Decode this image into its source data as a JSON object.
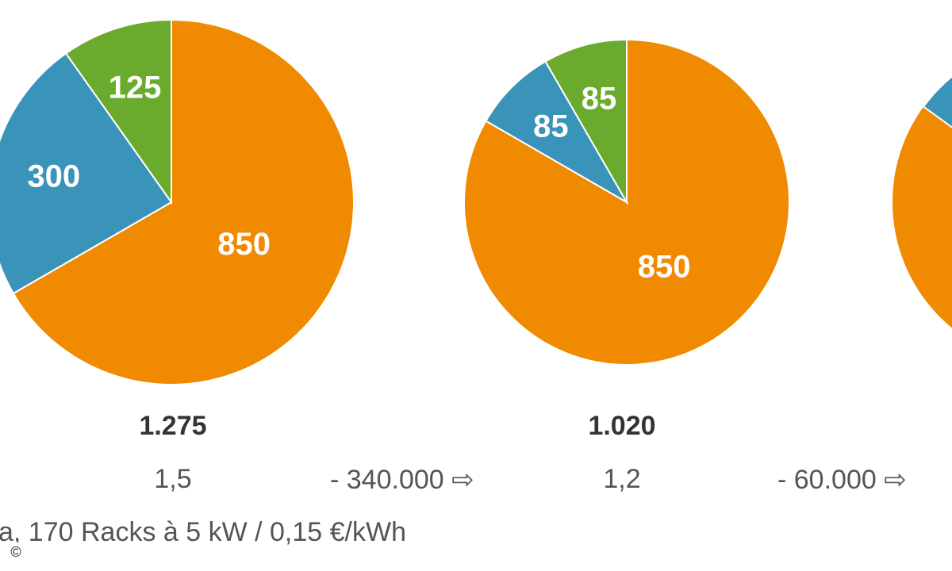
{
  "colors": {
    "orange": "#f08a00",
    "blue": "#3a93b8",
    "green": "#6aaa2c",
    "label": "#ffffff",
    "text": "#555555"
  },
  "chart_data": [
    {
      "type": "pie",
      "slices": [
        {
          "label": "850",
          "value": 850,
          "color": "#f08a00"
        },
        {
          "label": "300",
          "value": 300,
          "color": "#3a93b8"
        },
        {
          "label": "125",
          "value": 125,
          "color": "#6aaa2c"
        }
      ],
      "total": "1.275",
      "pue": "1,5"
    },
    {
      "type": "pie",
      "slices": [
        {
          "label": "850",
          "value": 850,
          "color": "#f08a00"
        },
        {
          "label": "85",
          "value": 85,
          "color": "#3a93b8"
        },
        {
          "label": "85",
          "value": 85,
          "color": "#6aaa2c"
        }
      ],
      "total": "1.020",
      "pue": "1,2"
    }
  ],
  "savings": [
    {
      "text": "- 340.000 ⇨"
    },
    {
      "text": "- 60.000 ⇨"
    }
  ],
  "footnote": "a, 170 Racks à 5 kW / 0,15 €/kWh",
  "copyright": "©"
}
